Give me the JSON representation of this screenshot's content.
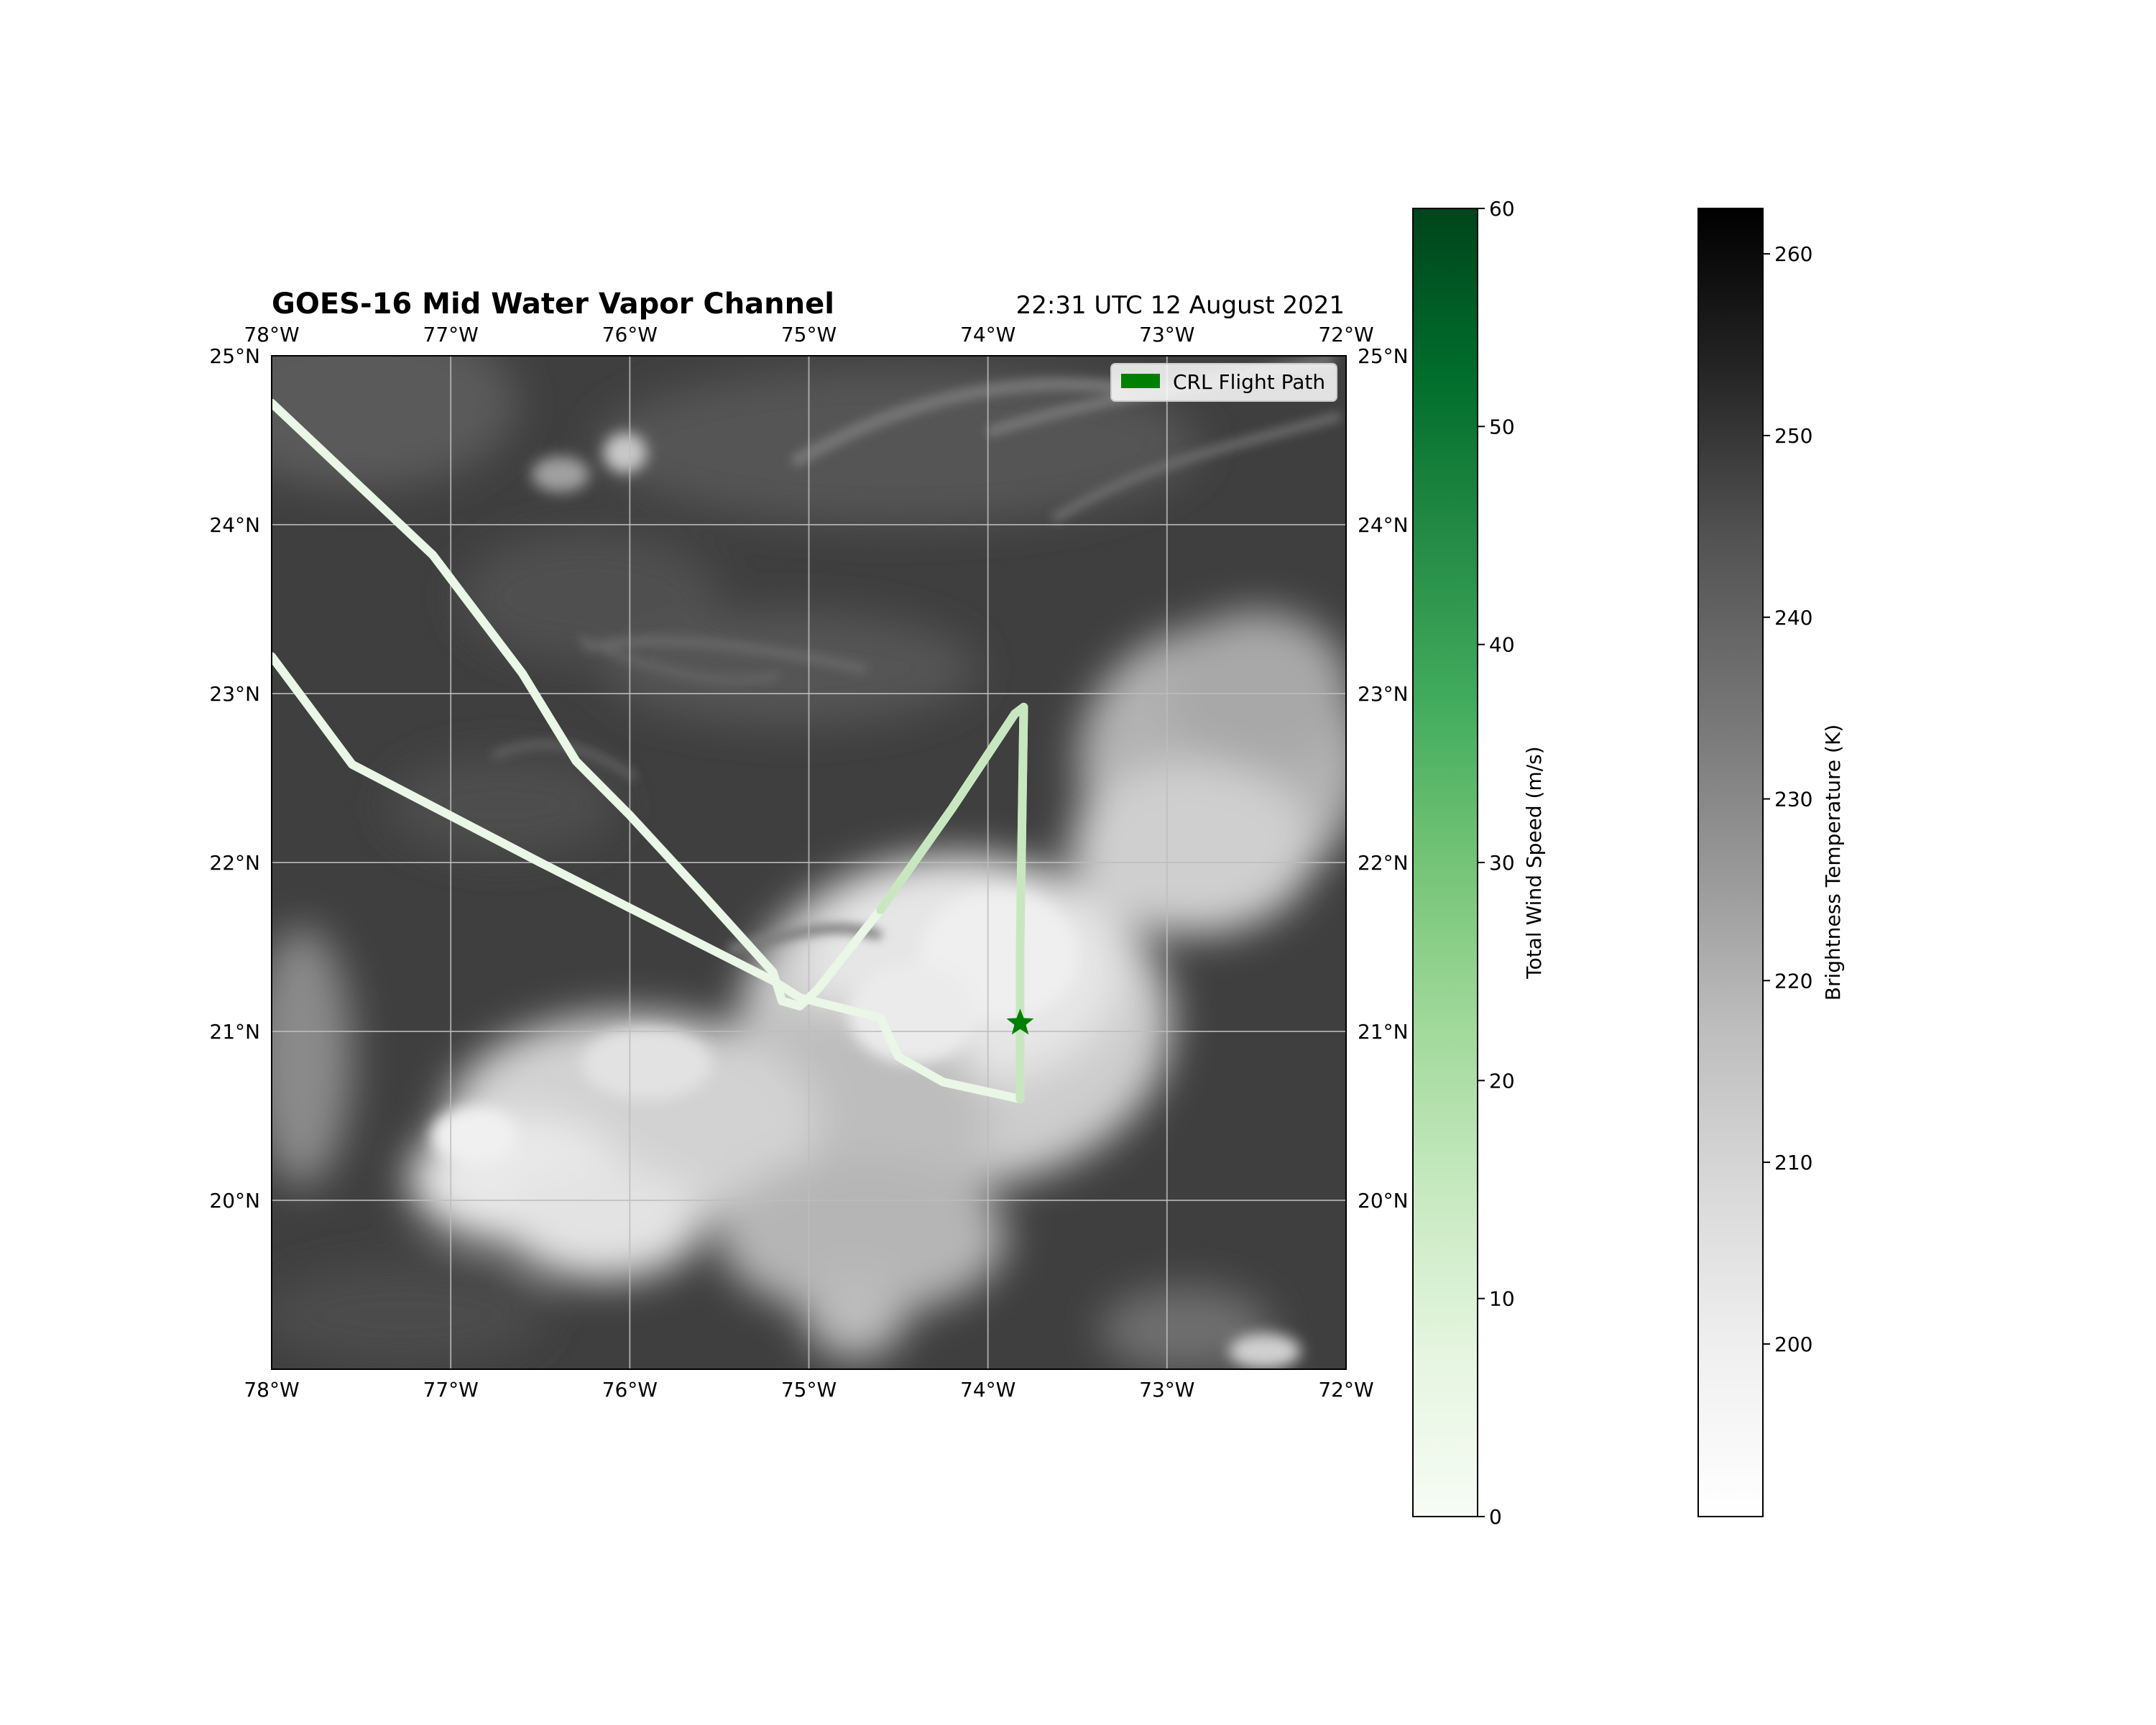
{
  "title": "GOES-16 Mid Water Vapor Channel",
  "timestamp": "22:31 UTC 12 August 2021",
  "map": {
    "lon_range": [
      -78,
      -72
    ],
    "lat_range": [
      19,
      25
    ],
    "lon_ticks": [
      -78,
      -77,
      -76,
      -75,
      -74,
      -73,
      -72
    ],
    "lon_tick_labels": [
      "78°W",
      "77°W",
      "76°W",
      "75°W",
      "74°W",
      "73°W",
      "72°W"
    ],
    "lat_ticks": [
      20,
      21,
      22,
      23,
      24,
      25
    ],
    "lat_tick_labels": [
      "20°N",
      "21°N",
      "22°N",
      "23°N",
      "24°N",
      "25°N"
    ],
    "gridlines": true,
    "background": "satellite water-vapor imagery (grayscale)"
  },
  "legend": {
    "label": "CRL Flight Path",
    "color": "#008000",
    "placement": "upper-right"
  },
  "flight_path": {
    "color_start": "#eaf6e6",
    "color_end": "#c4e6bd",
    "segments": [
      [
        [
          -78.0,
          24.72
        ],
        [
          -77.1,
          23.82
        ],
        [
          -76.6,
          23.12
        ],
        [
          -76.3,
          22.6
        ],
        [
          -76.0,
          22.28
        ],
        [
          -75.6,
          21.82
        ],
        [
          -75.2,
          21.35
        ],
        [
          -75.15,
          21.18
        ],
        [
          -75.05,
          21.15
        ],
        [
          -74.95,
          21.25
        ],
        [
          -74.6,
          21.72
        ],
        [
          -74.2,
          22.32
        ],
        [
          -73.85,
          22.88
        ],
        [
          -73.8,
          22.92
        ],
        [
          -73.82,
          21.5
        ],
        [
          -73.82,
          20.6
        ]
      ],
      [
        [
          -78.0,
          23.22
        ],
        [
          -77.55,
          22.58
        ],
        [
          -76.5,
          22.0
        ],
        [
          -75.2,
          21.3
        ],
        [
          -75.05,
          21.2
        ],
        [
          -74.6,
          21.08
        ],
        [
          -74.5,
          20.85
        ],
        [
          -74.25,
          20.7
        ],
        [
          -73.82,
          20.6
        ]
      ]
    ],
    "marker": {
      "lon": -73.82,
      "lat": 21.05,
      "shape": "star",
      "color": "#008000"
    }
  },
  "colorbar_wind": {
    "label": "Total Wind Speed (m/s)",
    "min": 0,
    "max": 60,
    "ticks": [
      0,
      10,
      20,
      30,
      40,
      50,
      60
    ],
    "colormap": "Greens",
    "color_low": "#f7fcf5",
    "color_high": "#00441b"
  },
  "colorbar_temp": {
    "label": "Brightness Temperature (K)",
    "min": 190.5,
    "max": 262.5,
    "ticks": [
      200,
      210,
      220,
      230,
      240,
      250,
      260
    ],
    "colormap": "Greys",
    "color_low": "#ffffff",
    "color_high": "#000000"
  }
}
